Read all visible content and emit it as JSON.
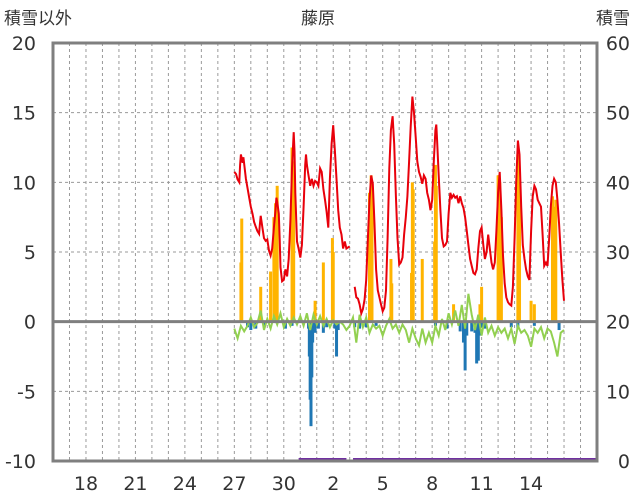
{
  "chart_data": {
    "type": "line",
    "title": "藤原",
    "left_axis_label": "積雪以外",
    "right_axis_label": "積雪",
    "ylim_left": [
      -10,
      20
    ],
    "ylim_right": [
      0,
      60
    ],
    "yticks_left": [
      "20",
      "15",
      "10",
      "5",
      "0",
      "-5",
      "-10"
    ],
    "yticks_right": [
      "60",
      "50",
      "40",
      "30",
      "20",
      "10",
      "0"
    ],
    "x_range_days": [
      16,
      49
    ],
    "x_ticks": [
      {
        "label": "18",
        "day": 18
      },
      {
        "label": "21",
        "day": 21
      },
      {
        "label": "24",
        "day": 24
      },
      {
        "label": "27",
        "day": 27
      },
      {
        "label": "30",
        "day": 30
      },
      {
        "label": "2",
        "day": 33
      },
      {
        "label": "5",
        "day": 36
      },
      {
        "label": "8",
        "day": 39
      },
      {
        "label": "11",
        "day": 42
      },
      {
        "label": "14",
        "day": 45
      }
    ],
    "grid": true,
    "colors": {
      "snow_depth": "#e8000b",
      "snowfall": "#ffb400",
      "temperature": "#92d050",
      "negative_bar": "#1f77b4",
      "period_bar": "#7030a0",
      "axis": "#7f7f7f",
      "grid": "#9a9a9a"
    },
    "snow_depth_series": [
      [
        27.0,
        41.5
      ],
      [
        27.1,
        41.2
      ],
      [
        27.2,
        40.4
      ],
      [
        27.3,
        40.0
      ],
      [
        27.35,
        42.5
      ],
      [
        27.4,
        44.0
      ],
      [
        27.5,
        42.8
      ],
      [
        27.55,
        43.6
      ],
      [
        27.7,
        40.5
      ],
      [
        27.8,
        39.2
      ],
      [
        27.9,
        37.8
      ],
      [
        28.0,
        36.5
      ],
      [
        28.1,
        35.5
      ],
      [
        28.2,
        34.3
      ],
      [
        28.3,
        33.6
      ],
      [
        28.4,
        33.0
      ],
      [
        28.5,
        32.6
      ],
      [
        28.55,
        34.0
      ],
      [
        28.6,
        35.2
      ],
      [
        28.7,
        33.5
      ],
      [
        28.8,
        32.0
      ],
      [
        28.9,
        31.6
      ],
      [
        29.0,
        31.8
      ],
      [
        29.1,
        30.2
      ],
      [
        29.2,
        29.5
      ],
      [
        29.3,
        30.5
      ],
      [
        29.4,
        33.5
      ],
      [
        29.5,
        36.0
      ],
      [
        29.55,
        37.8
      ],
      [
        29.6,
        37.2
      ],
      [
        29.7,
        35.5
      ],
      [
        29.75,
        31.8
      ],
      [
        29.8,
        27.8
      ],
      [
        29.9,
        25.8
      ],
      [
        30.0,
        26.0
      ],
      [
        30.1,
        27.5
      ],
      [
        30.2,
        26.5
      ],
      [
        30.3,
        29.0
      ],
      [
        30.4,
        34.5
      ],
      [
        30.5,
        42.0
      ],
      [
        30.6,
        47.2
      ],
      [
        30.65,
        44.5
      ],
      [
        30.7,
        38.5
      ],
      [
        30.8,
        31.5
      ],
      [
        30.9,
        30.5
      ],
      [
        31.0,
        29.2
      ],
      [
        31.1,
        31.0
      ],
      [
        31.2,
        36.5
      ],
      [
        31.3,
        42.5
      ],
      [
        31.35,
        44.0
      ],
      [
        31.4,
        42.5
      ],
      [
        31.5,
        41.0
      ],
      [
        31.6,
        39.5
      ],
      [
        31.7,
        40.5
      ],
      [
        31.8,
        39.5
      ],
      [
        31.9,
        40.2
      ],
      [
        32.0,
        40.0
      ],
      [
        32.1,
        39.5
      ],
      [
        32.2,
        42.0
      ],
      [
        32.3,
        41.5
      ],
      [
        32.4,
        39.0
      ],
      [
        32.5,
        37.5
      ],
      [
        32.6,
        35.8
      ],
      [
        32.7,
        33.5
      ],
      [
        32.8,
        40.5
      ],
      [
        32.9,
        45.5
      ],
      [
        33.0,
        48.2
      ],
      [
        33.1,
        44.5
      ],
      [
        33.2,
        40.5
      ],
      [
        33.3,
        36.0
      ],
      [
        33.4,
        33.5
      ],
      [
        33.5,
        32.5
      ],
      [
        33.6,
        30.5
      ],
      [
        33.7,
        31.5
      ],
      [
        33.8,
        30.5
      ],
      [
        34.0,
        30.8
      ],
      [
        34.3,
        25.0
      ],
      [
        34.4,
        23.5
      ],
      [
        34.5,
        23.3
      ],
      [
        34.6,
        22.5
      ],
      [
        34.7,
        21.2
      ],
      [
        34.8,
        21.8
      ],
      [
        34.9,
        23.2
      ],
      [
        35.0,
        26.0
      ],
      [
        35.1,
        32.0
      ],
      [
        35.2,
        37.5
      ],
      [
        35.3,
        41.0
      ],
      [
        35.4,
        39.8
      ],
      [
        35.5,
        34.0
      ],
      [
        35.6,
        27.5
      ],
      [
        35.7,
        24.5
      ],
      [
        35.8,
        23.5
      ],
      [
        35.9,
        22.5
      ],
      [
        36.0,
        21.5
      ],
      [
        36.1,
        22.0
      ],
      [
        36.2,
        24.5
      ],
      [
        36.3,
        32.0
      ],
      [
        36.4,
        42.0
      ],
      [
        36.5,
        47.5
      ],
      [
        36.6,
        49.5
      ],
      [
        36.7,
        45.5
      ],
      [
        36.8,
        38.0
      ],
      [
        36.9,
        32.0
      ],
      [
        37.0,
        28.2
      ],
      [
        37.1,
        28.5
      ],
      [
        37.2,
        29.2
      ],
      [
        37.3,
        32.5
      ],
      [
        37.4,
        35.0
      ],
      [
        37.5,
        38.0
      ],
      [
        37.6,
        43.0
      ],
      [
        37.7,
        48.0
      ],
      [
        37.8,
        52.3
      ],
      [
        37.9,
        50.0
      ],
      [
        38.0,
        46.5
      ],
      [
        38.1,
        43.0
      ],
      [
        38.2,
        41.5
      ],
      [
        38.3,
        40.8
      ],
      [
        38.4,
        39.8
      ],
      [
        38.5,
        41.0
      ],
      [
        38.6,
        40.5
      ],
      [
        38.7,
        38.5
      ],
      [
        38.8,
        37.5
      ],
      [
        38.9,
        36.0
      ],
      [
        39.0,
        37.5
      ],
      [
        39.1,
        43.0
      ],
      [
        39.2,
        47.5
      ],
      [
        39.25,
        48.3
      ],
      [
        39.3,
        46.0
      ],
      [
        39.4,
        41.0
      ],
      [
        39.5,
        36.0
      ],
      [
        39.6,
        32.0
      ],
      [
        39.7,
        30.8
      ],
      [
        39.8,
        31.0
      ],
      [
        39.9,
        31.5
      ],
      [
        40.0,
        35.5
      ],
      [
        40.1,
        38.5
      ],
      [
        40.2,
        37.8
      ],
      [
        40.3,
        38.2
      ],
      [
        40.4,
        37.8
      ],
      [
        40.5,
        38.0
      ],
      [
        40.6,
        37.0
      ],
      [
        40.7,
        38.0
      ],
      [
        40.8,
        37.0
      ],
      [
        40.9,
        36.3
      ],
      [
        41.0,
        35.0
      ],
      [
        41.1,
        33.0
      ],
      [
        41.2,
        31.0
      ],
      [
        41.3,
        29.0
      ],
      [
        41.4,
        28.0
      ],
      [
        41.5,
        27.0
      ],
      [
        41.6,
        26.8
      ],
      [
        41.7,
        27.5
      ],
      [
        41.8,
        30.5
      ],
      [
        41.9,
        33.0
      ],
      [
        42.0,
        33.5
      ],
      [
        42.1,
        31.0
      ],
      [
        42.2,
        29.0
      ],
      [
        42.3,
        30.0
      ],
      [
        42.4,
        32.5
      ],
      [
        42.5,
        30.5
      ],
      [
        42.6,
        28.5
      ],
      [
        42.7,
        27.5
      ],
      [
        42.8,
        28.5
      ],
      [
        42.9,
        33.0
      ],
      [
        43.0,
        38.5
      ],
      [
        43.1,
        41.5
      ],
      [
        43.2,
        36.0
      ],
      [
        43.3,
        29.5
      ],
      [
        43.4,
        25.5
      ],
      [
        43.5,
        23.5
      ],
      [
        43.6,
        22.8
      ],
      [
        43.7,
        22.5
      ],
      [
        43.8,
        22.3
      ],
      [
        43.9,
        25.0
      ],
      [
        44.0,
        32.0
      ],
      [
        44.1,
        40.0
      ],
      [
        44.2,
        46.0
      ],
      [
        44.3,
        44.0
      ],
      [
        44.4,
        36.5
      ],
      [
        44.5,
        31.0
      ],
      [
        44.6,
        29.0
      ],
      [
        44.7,
        27.5
      ],
      [
        44.8,
        26.5
      ],
      [
        44.9,
        26.0
      ],
      [
        45.0,
        33.0
      ],
      [
        45.1,
        38.0
      ],
      [
        45.2,
        39.5
      ],
      [
        45.3,
        39.0
      ],
      [
        45.4,
        37.5
      ],
      [
        45.5,
        37.0
      ],
      [
        45.6,
        36.5
      ],
      [
        45.7,
        32.5
      ],
      [
        45.8,
        28.0
      ],
      [
        45.9,
        28.5
      ],
      [
        46.0,
        28.0
      ],
      [
        46.1,
        32.0
      ],
      [
        46.2,
        36.5
      ],
      [
        46.3,
        39.5
      ],
      [
        46.4,
        40.5
      ],
      [
        46.5,
        40.0
      ],
      [
        46.6,
        37.5
      ],
      [
        46.7,
        34.0
      ],
      [
        46.8,
        30.0
      ],
      [
        46.9,
        26.0
      ],
      [
        47.0,
        23.0
      ]
    ],
    "snowfall_bars": [
      [
        27.4,
        28.5
      ],
      [
        27.45,
        34.8
      ],
      [
        28.6,
        25.0
      ],
      [
        29.2,
        27.2
      ],
      [
        29.4,
        35.0
      ],
      [
        29.5,
        37.0
      ],
      [
        29.6,
        39.5
      ],
      [
        30.5,
        45.0
      ],
      [
        30.55,
        43.0
      ],
      [
        30.6,
        41.0
      ],
      [
        31.9,
        23.0
      ],
      [
        32.4,
        28.5
      ],
      [
        32.95,
        32.0
      ],
      [
        33.0,
        30.0
      ],
      [
        35.2,
        38.5
      ],
      [
        35.3,
        41.0
      ],
      [
        35.35,
        40.0
      ],
      [
        36.5,
        29.0
      ],
      [
        36.55,
        25.5
      ],
      [
        37.75,
        27.0
      ],
      [
        37.8,
        40.0
      ],
      [
        37.85,
        39.0
      ],
      [
        38.4,
        29.0
      ],
      [
        39.15,
        31.5
      ],
      [
        39.2,
        42.5
      ],
      [
        39.25,
        39.5
      ],
      [
        40.3,
        22.5
      ],
      [
        41.9,
        22.5
      ],
      [
        42.0,
        25.0
      ],
      [
        43.0,
        41.0
      ],
      [
        43.1,
        40.0
      ],
      [
        43.2,
        35.0
      ],
      [
        44.2,
        44.0
      ],
      [
        44.3,
        40.0
      ],
      [
        45.0,
        23.0
      ],
      [
        45.2,
        22.5
      ],
      [
        46.3,
        38.0
      ],
      [
        46.4,
        36.5
      ],
      [
        46.5,
        37.5
      ]
    ],
    "negative_bars": [
      [
        27.8,
        -0.4
      ],
      [
        28.0,
        -0.6
      ],
      [
        28.3,
        -0.5
      ],
      [
        28.8,
        -0.4
      ],
      [
        30.1,
        -0.5
      ],
      [
        30.5,
        -0.3
      ],
      [
        31.5,
        -0.5
      ],
      [
        31.55,
        -2.5
      ],
      [
        31.6,
        -5.6
      ],
      [
        31.65,
        -7.5
      ],
      [
        31.7,
        -4.0
      ],
      [
        31.75,
        -1.5
      ],
      [
        31.9,
        -0.8
      ],
      [
        32.1,
        -0.5
      ],
      [
        32.4,
        -0.8
      ],
      [
        32.6,
        -0.4
      ],
      [
        33.1,
        -0.5
      ],
      [
        33.2,
        -2.5
      ],
      [
        33.3,
        -0.6
      ],
      [
        34.3,
        -0.4
      ],
      [
        34.6,
        -0.5
      ],
      [
        35.0,
        -0.4
      ],
      [
        35.6,
        -0.3
      ],
      [
        39.2,
        -0.3
      ],
      [
        39.9,
        -0.5
      ],
      [
        40.7,
        -0.7
      ],
      [
        40.9,
        -1.5
      ],
      [
        41.0,
        -3.5
      ],
      [
        41.1,
        -1.0
      ],
      [
        41.4,
        -0.7
      ],
      [
        41.6,
        -0.8
      ],
      [
        41.7,
        -3.0
      ],
      [
        41.8,
        -2.8
      ],
      [
        41.9,
        -1.0
      ],
      [
        42.0,
        -0.4
      ],
      [
        42.2,
        -0.5
      ],
      [
        43.8,
        -0.4
      ],
      [
        44.2,
        -0.5
      ],
      [
        45.2,
        -0.3
      ],
      [
        46.7,
        -0.6
      ]
    ],
    "temperature_series": [
      [
        27.0,
        -0.5
      ],
      [
        27.2,
        -1.2
      ],
      [
        27.4,
        -0.3
      ],
      [
        27.6,
        -0.7
      ],
      [
        27.8,
        -0.3
      ],
      [
        28.0,
        0.3
      ],
      [
        28.2,
        -0.4
      ],
      [
        28.4,
        -0.1
      ],
      [
        28.6,
        0.8
      ],
      [
        28.8,
        -0.6
      ],
      [
        29.0,
        0.2
      ],
      [
        29.2,
        -0.5
      ],
      [
        29.4,
        0.4
      ],
      [
        29.6,
        -0.2
      ],
      [
        29.8,
        0.6
      ],
      [
        30.0,
        -0.4
      ],
      [
        30.2,
        0.2
      ],
      [
        30.4,
        -0.3
      ],
      [
        30.6,
        0.3
      ],
      [
        30.8,
        -0.2
      ],
      [
        31.0,
        0.4
      ],
      [
        31.2,
        -0.3
      ],
      [
        31.4,
        0.6
      ],
      [
        31.6,
        -0.6
      ],
      [
        31.8,
        0.5
      ],
      [
        32.0,
        -0.2
      ],
      [
        32.2,
        0.4
      ],
      [
        32.4,
        -0.3
      ],
      [
        32.6,
        0.2
      ],
      [
        32.8,
        -0.4
      ],
      [
        33.0,
        0.1
      ],
      [
        33.2,
        -0.2
      ],
      [
        33.4,
        0.0
      ],
      [
        33.6,
        -0.2
      ],
      [
        33.8,
        -0.6
      ],
      [
        34.0,
        -0.3
      ],
      [
        34.2,
        0.3
      ],
      [
        34.4,
        -1.5
      ],
      [
        34.6,
        0.5
      ],
      [
        34.8,
        -0.4
      ],
      [
        35.0,
        0.3
      ],
      [
        35.2,
        -0.8
      ],
      [
        35.4,
        -0.2
      ],
      [
        35.6,
        -0.5
      ],
      [
        35.8,
        -0.3
      ],
      [
        36.0,
        -1.0
      ],
      [
        36.2,
        -0.3
      ],
      [
        36.4,
        0.2
      ],
      [
        36.6,
        -0.5
      ],
      [
        36.8,
        -0.2
      ],
      [
        37.0,
        -0.8
      ],
      [
        37.2,
        -0.2
      ],
      [
        37.4,
        -0.6
      ],
      [
        37.6,
        -1.5
      ],
      [
        37.8,
        -0.5
      ],
      [
        38.0,
        -1.2
      ],
      [
        38.2,
        -1.7
      ],
      [
        38.4,
        -0.5
      ],
      [
        38.6,
        -1.5
      ],
      [
        38.8,
        -0.8
      ],
      [
        39.0,
        -1.5
      ],
      [
        39.2,
        -0.3
      ],
      [
        39.4,
        -1.0
      ],
      [
        39.6,
        0.2
      ],
      [
        39.8,
        -0.6
      ],
      [
        40.0,
        0.6
      ],
      [
        40.2,
        -0.2
      ],
      [
        40.4,
        0.8
      ],
      [
        40.6,
        -0.3
      ],
      [
        40.8,
        1.2
      ],
      [
        41.0,
        -0.5
      ],
      [
        41.2,
        2.0
      ],
      [
        41.4,
        0.5
      ],
      [
        41.6,
        -0.6
      ],
      [
        41.8,
        0.5
      ],
      [
        42.0,
        -1.0
      ],
      [
        42.2,
        0.3
      ],
      [
        42.4,
        -0.8
      ],
      [
        42.6,
        -0.3
      ],
      [
        42.8,
        -1.0
      ],
      [
        43.0,
        -0.4
      ],
      [
        43.2,
        -0.8
      ],
      [
        43.4,
        -0.5
      ],
      [
        43.6,
        -1.2
      ],
      [
        43.8,
        -0.5
      ],
      [
        44.0,
        -1.6
      ],
      [
        44.2,
        -0.3
      ],
      [
        44.4,
        -0.8
      ],
      [
        44.6,
        -0.6
      ],
      [
        44.8,
        -1.0
      ],
      [
        45.0,
        -1.8
      ],
      [
        45.2,
        -0.5
      ],
      [
        45.4,
        -0.8
      ],
      [
        45.6,
        -0.4
      ],
      [
        45.8,
        -1.2
      ],
      [
        46.0,
        -0.5
      ],
      [
        46.2,
        -0.7
      ],
      [
        46.4,
        -1.5
      ],
      [
        46.6,
        -2.5
      ],
      [
        46.8,
        -0.8
      ],
      [
        47.0,
        -0.6
      ]
    ],
    "period_bars": [
      [
        30.9,
        33.8
      ],
      [
        34.2,
        49.0
      ]
    ]
  }
}
